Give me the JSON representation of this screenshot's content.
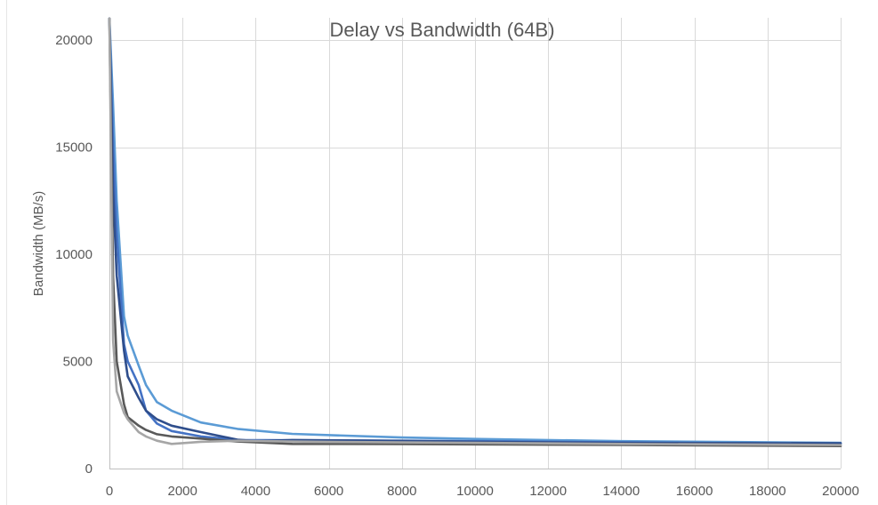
{
  "chart_data": {
    "type": "line",
    "title": "Delay vs Bandwidth (64B)",
    "xlabel": "",
    "ylabel": "Bandwidth (MB/s)",
    "xlim": [
      0,
      20000
    ],
    "ylim": [
      0,
      20000
    ],
    "xticks": [
      0,
      2000,
      4000,
      6000,
      8000,
      10000,
      12000,
      14000,
      16000,
      18000,
      20000
    ],
    "yticks": [
      0,
      5000,
      10000,
      15000,
      20000
    ],
    "grid": true,
    "legend": "none",
    "series": [
      {
        "color": "#5b9bd5",
        "x": [
          0,
          100,
          200,
          400,
          500,
          800,
          1000,
          1300,
          1700,
          2500,
          3500,
          5000,
          8000,
          10000,
          14000,
          20000
        ],
        "y": [
          21000,
          17000,
          12500,
          7100,
          6200,
          4800,
          3900,
          3100,
          2700,
          2150,
          1850,
          1620,
          1450,
          1380,
          1280,
          1200
        ]
      },
      {
        "color": "#4472c4",
        "x": [
          0,
          100,
          200,
          400,
          500,
          800,
          1000,
          1300,
          1700,
          2500,
          3500,
          5000,
          8000,
          10000,
          14000,
          20000
        ],
        "y": [
          21000,
          15000,
          11000,
          5800,
          5000,
          3900,
          2700,
          2100,
          1750,
          1500,
          1330,
          1320,
          1300,
          1280,
          1220,
          1150
        ]
      },
      {
        "color": "#2f4e8c",
        "x": [
          0,
          100,
          200,
          400,
          500,
          800,
          1000,
          1300,
          1700,
          2500,
          3500,
          4000,
          5000,
          8000,
          10000,
          14000,
          20000
        ],
        "y": [
          21000,
          13000,
          9000,
          5500,
          4300,
          3300,
          2700,
          2300,
          2000,
          1700,
          1350,
          1280,
          1330,
          1290,
          1250,
          1200,
          1180
        ]
      },
      {
        "color": "#595959",
        "x": [
          0,
          100,
          200,
          400,
          500,
          800,
          1000,
          1300,
          1700,
          2500,
          3500,
          5000,
          8000,
          10000,
          14000,
          20000
        ],
        "y": [
          21000,
          9000,
          5000,
          3000,
          2400,
          2000,
          1800,
          1600,
          1500,
          1400,
          1260,
          1150,
          1140,
          1130,
          1100,
          1050
        ]
      },
      {
        "color": "#a6a6a6",
        "x": [
          0,
          100,
          200,
          400,
          500,
          800,
          1000,
          1300,
          1700,
          2500,
          3500,
          5000,
          8000,
          10000,
          14000,
          20000
        ],
        "y": [
          21000,
          6000,
          3600,
          2600,
          2300,
          1700,
          1500,
          1300,
          1150,
          1250,
          1300,
          1260,
          1220,
          1200,
          1150,
          1100
        ]
      }
    ]
  }
}
